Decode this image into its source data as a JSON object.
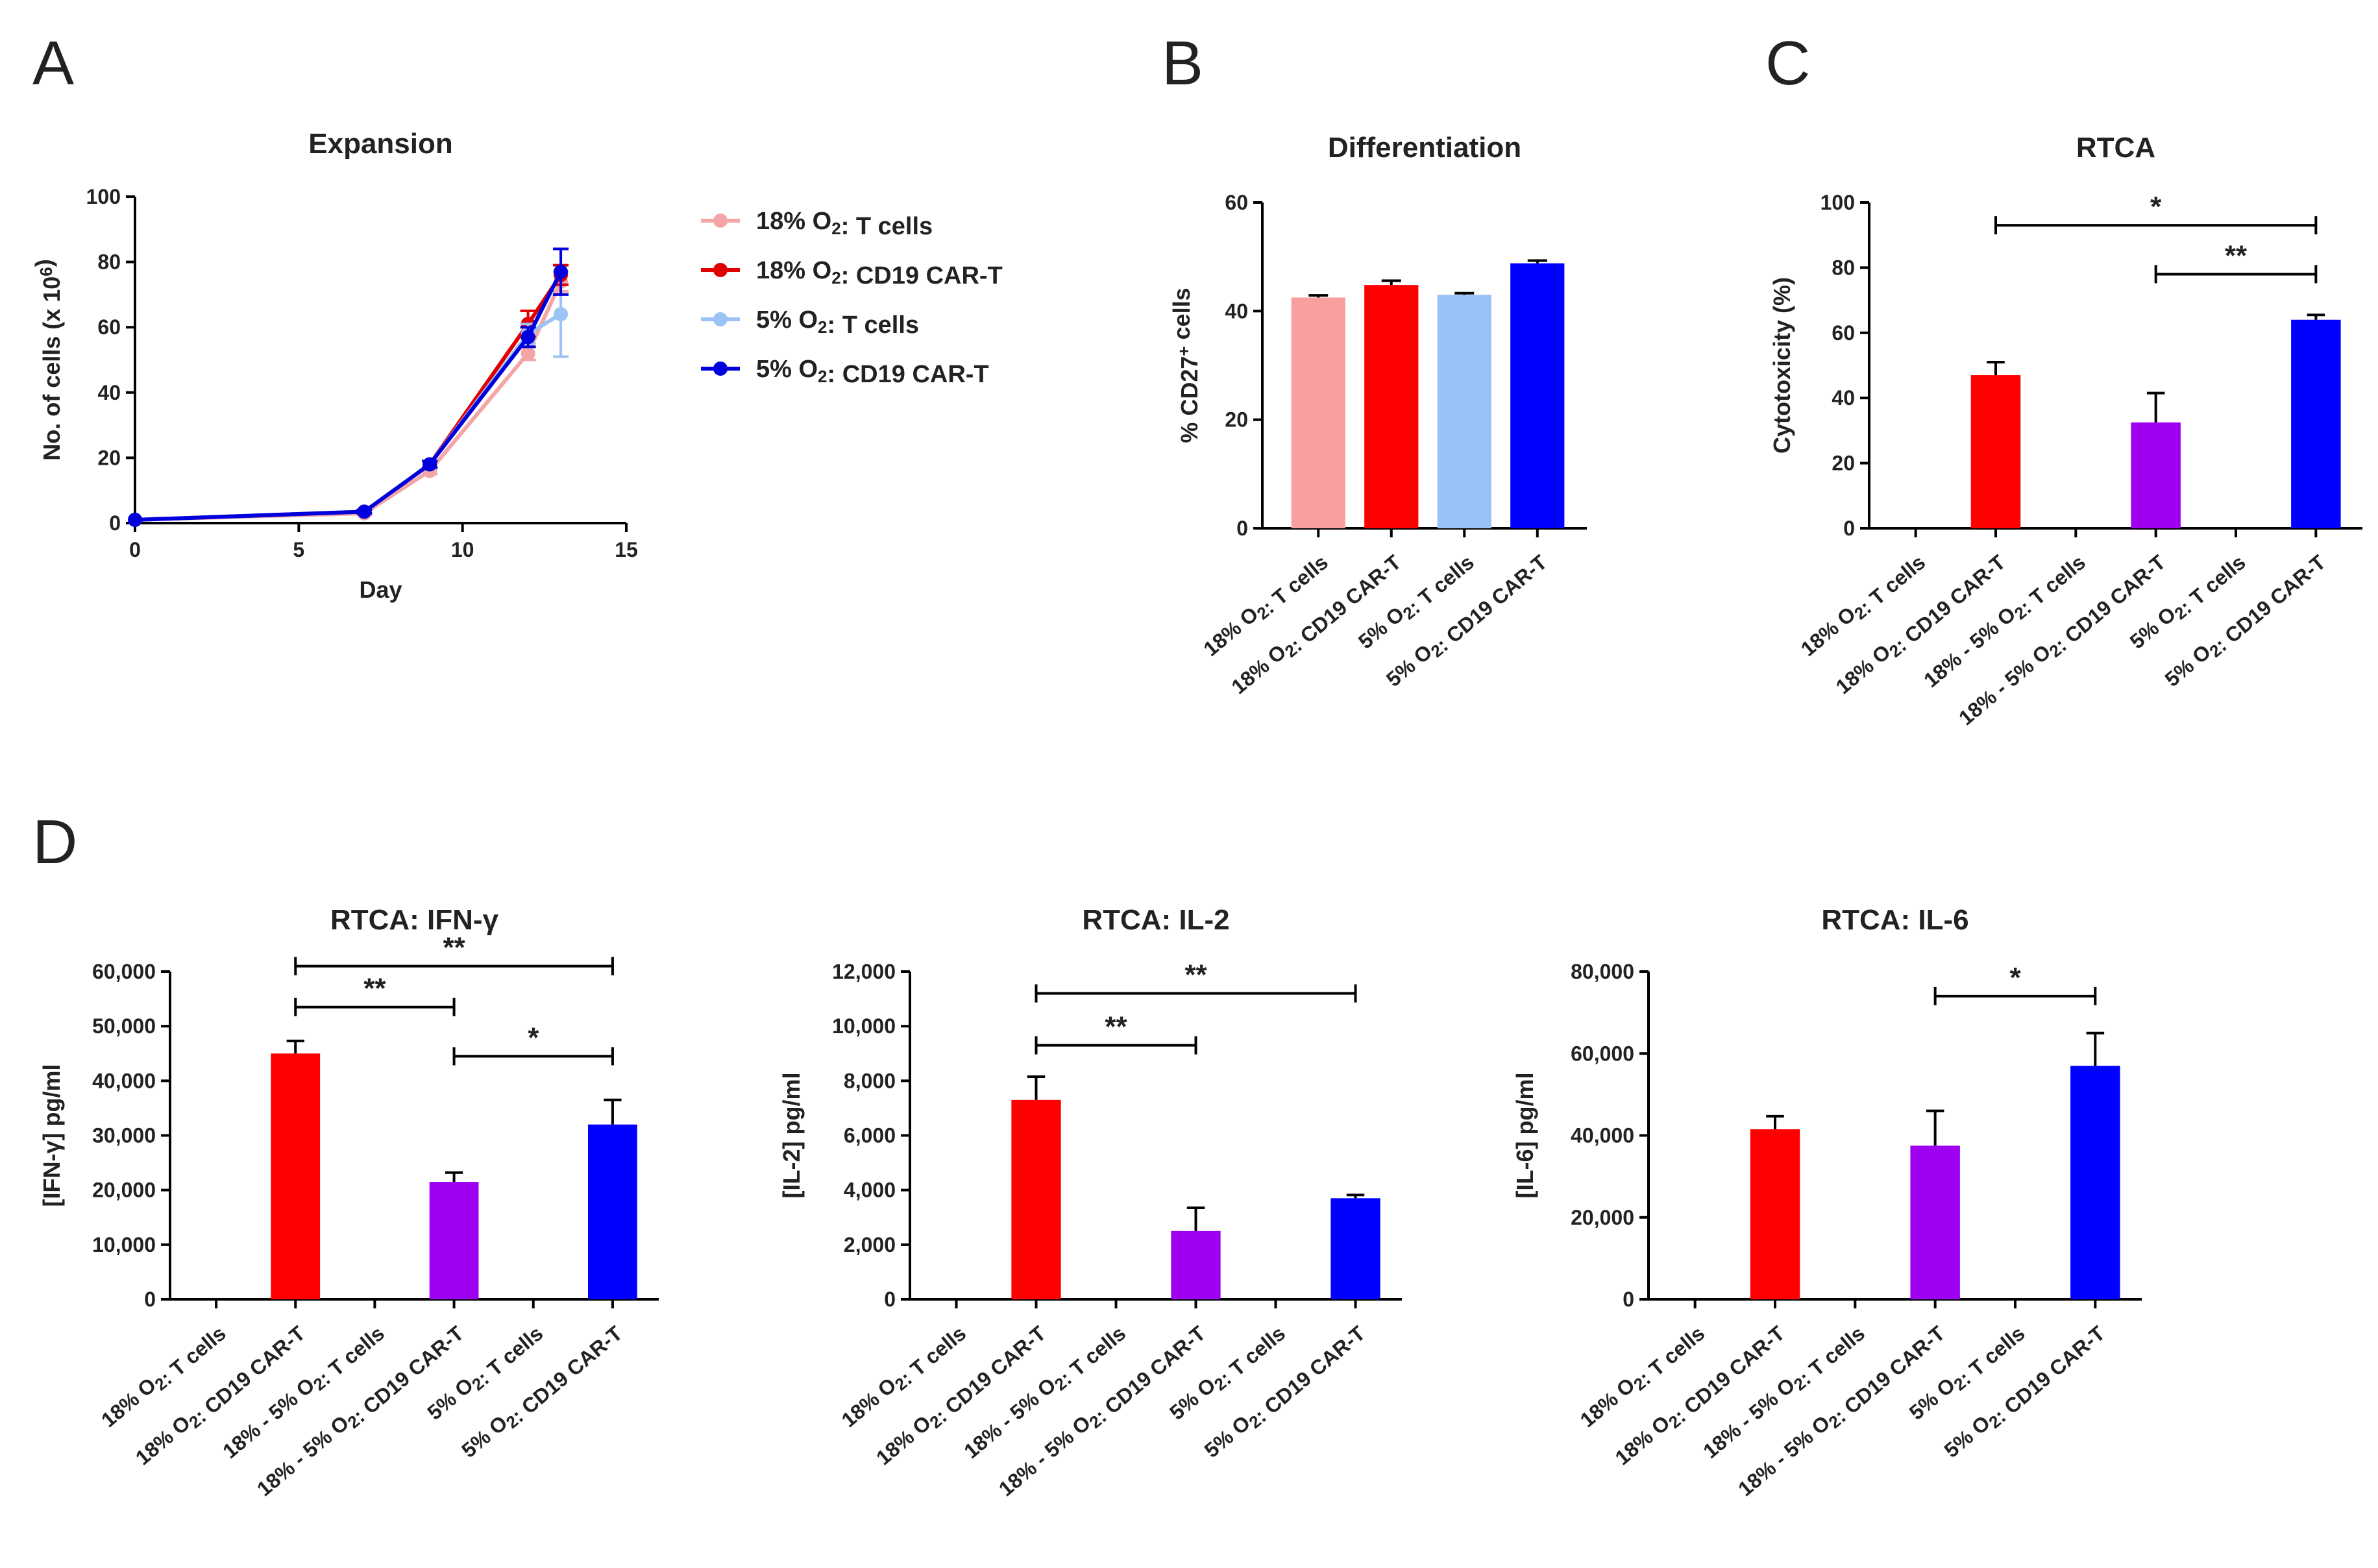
{
  "figure": {
    "panel_labels": [
      "A",
      "B",
      "C",
      "D"
    ]
  },
  "legend": {
    "items": [
      {
        "label": "18% O2: T cells",
        "color": "#f4a6a6"
      },
      {
        "label": "18% O2: CD19 CAR-T",
        "color": "#e00000"
      },
      {
        "label": "5% O2: T cells",
        "color": "#9cc3f5"
      },
      {
        "label": "5% O2: CD19 CAR-T",
        "color": "#0000dd"
      }
    ]
  },
  "chart_data": [
    {
      "id": "A",
      "type": "line",
      "title": "Expansion",
      "xlabel": "Day",
      "ylabel": "No. of cells (x 10^6)",
      "xlim": [
        0,
        15
      ],
      "ylim": [
        0,
        100
      ],
      "xticks": [
        0,
        5,
        10,
        15
      ],
      "yticks": [
        0,
        20,
        40,
        60,
        80,
        100
      ],
      "series": [
        {
          "name": "18% O2: T cells",
          "color": "#f4a6a6",
          "x": [
            0,
            7,
            9,
            12,
            13
          ],
          "y": [
            1,
            3,
            16,
            52,
            74
          ],
          "err": [
            0,
            0.5,
            1,
            2,
            3
          ]
        },
        {
          "name": "18% O2: CD19 CAR-T",
          "color": "#e00000",
          "x": [
            0,
            7,
            9,
            12,
            13
          ],
          "y": [
            1,
            3.5,
            18,
            61,
            76
          ],
          "err": [
            0,
            0.5,
            1,
            4,
            3
          ]
        },
        {
          "name": "5% O2: T cells",
          "color": "#9cc3f5",
          "x": [
            0,
            7,
            9,
            12,
            13
          ],
          "y": [
            1,
            3.5,
            18,
            58,
            64
          ],
          "err": [
            0,
            0.5,
            1,
            3,
            13
          ]
        },
        {
          "name": "5% O2: CD19 CAR-T",
          "color": "#0000dd",
          "x": [
            0,
            7,
            9,
            12,
            13
          ],
          "y": [
            1,
            3.5,
            18,
            57,
            77
          ],
          "err": [
            0,
            0.5,
            1,
            3,
            7
          ]
        }
      ]
    },
    {
      "id": "B",
      "type": "bar",
      "title": "Differentiation",
      "ylabel": "% CD27+ cells",
      "ylim": [
        0,
        60
      ],
      "yticks": [
        0,
        20,
        40,
        60
      ],
      "categories": [
        "18% O2: T cells",
        "18% O2: CD19 CAR-T",
        "5% O2: T cells",
        "5% O2: CD19 CAR-T"
      ],
      "values": [
        42.5,
        44.8,
        43,
        48.8
      ],
      "err": [
        0.4,
        0.8,
        0.3,
        0.5
      ],
      "colors": [
        "#f8a0a0",
        "#ff0000",
        "#99c2f7",
        "#0000ff"
      ]
    },
    {
      "id": "C",
      "type": "bar",
      "title": "RTCA",
      "ylabel": "Cytotoxicity (%)",
      "ylim": [
        0,
        100
      ],
      "yticks": [
        0,
        20,
        40,
        60,
        80,
        100
      ],
      "categories": [
        "18% O2: T cells",
        "18% O2: CD19 CAR-T",
        "18% - 5% O2: T cells",
        "18% - 5% O2: CD19 CAR-T",
        "5% O2: T cells",
        "5% O2: CD19 CAR-T"
      ],
      "values": [
        0,
        47,
        0,
        32.5,
        0,
        64
      ],
      "err": [
        0,
        4,
        0,
        9,
        0,
        1.5
      ],
      "colors": [
        "#f8a0a0",
        "#ff0000",
        "#d8a0f0",
        "#a000f0",
        "#99c2f7",
        "#0000ff"
      ],
      "significance": [
        {
          "from": 1,
          "to": 5,
          "y": 93,
          "label": "*"
        },
        {
          "from": 3,
          "to": 5,
          "y": 78,
          "label": "**"
        }
      ]
    },
    {
      "id": "D1",
      "type": "bar",
      "title": "RTCA: IFN-γ",
      "ylabel": "[IFN-γ] pg/ml",
      "ylim": [
        0,
        60000
      ],
      "yticks": [
        0,
        10000,
        20000,
        30000,
        40000,
        50000,
        60000
      ],
      "ytick_labels": [
        "0",
        "10,000",
        "20,000",
        "30,000",
        "40,000",
        "50,000",
        "60,000"
      ],
      "categories": [
        "18% O2: T cells",
        "18% O2: CD19 CAR-T",
        "18% - 5% O2: T cells",
        "18% - 5% O2: CD19 CAR-T",
        "5% O2: T cells",
        "5% O2: CD19 CAR-T"
      ],
      "values": [
        0,
        45000,
        0,
        21500,
        0,
        32000
      ],
      "err": [
        0,
        2300,
        0,
        1700,
        0,
        4500
      ],
      "colors": [
        "#f8a0a0",
        "#ff0000",
        "#d8a0f0",
        "#a000f0",
        "#99c2f7",
        "#0000ff"
      ],
      "significance": [
        {
          "from": 1,
          "to": 5,
          "y": 61000,
          "label": "**"
        },
        {
          "from": 1,
          "to": 3,
          "y": 53500,
          "label": "**"
        },
        {
          "from": 3,
          "to": 5,
          "y": 44500,
          "label": "*"
        }
      ]
    },
    {
      "id": "D2",
      "type": "bar",
      "title": "RTCA: IL-2",
      "ylabel": "[IL-2] pg/ml",
      "ylim": [
        0,
        12000
      ],
      "yticks": [
        0,
        2000,
        4000,
        6000,
        8000,
        10000,
        12000
      ],
      "ytick_labels": [
        "0",
        "2,000",
        "4,000",
        "6,000",
        "8,000",
        "10,000",
        "12,000"
      ],
      "categories": [
        "18% O2: T cells",
        "18% O2: CD19 CAR-T",
        "18% - 5% O2: T cells",
        "18% - 5% O2: CD19 CAR-T",
        "5% O2: T cells",
        "5% O2: CD19 CAR-T"
      ],
      "values": [
        0,
        7300,
        0,
        2500,
        0,
        3700
      ],
      "err": [
        0,
        850,
        0,
        850,
        0,
        120
      ],
      "colors": [
        "#f8a0a0",
        "#ff0000",
        "#d8a0f0",
        "#a000f0",
        "#99c2f7",
        "#0000ff"
      ],
      "significance": [
        {
          "from": 1,
          "to": 5,
          "y": 11200,
          "label": "**"
        },
        {
          "from": 1,
          "to": 3,
          "y": 9300,
          "label": "**"
        }
      ]
    },
    {
      "id": "D3",
      "type": "bar",
      "title": "RTCA: IL-6",
      "ylabel": "[IL-6] pg/ml",
      "ylim": [
        0,
        80000
      ],
      "yticks": [
        0,
        20000,
        40000,
        60000,
        80000
      ],
      "ytick_labels": [
        "0",
        "20,000",
        "40,000",
        "60,000",
        "80,000"
      ],
      "categories": [
        "18% O2: T cells",
        "18% O2: CD19 CAR-T",
        "18% - 5% O2: T cells",
        "18% - 5% O2: CD19 CAR-T",
        "5% O2: T cells",
        "5% O2: CD19 CAR-T"
      ],
      "values": [
        0,
        41500,
        0,
        37500,
        0,
        57000
      ],
      "err": [
        0,
        3200,
        0,
        8500,
        0,
        8000
      ],
      "colors": [
        "#f8a0a0",
        "#ff0000",
        "#d8a0f0",
        "#a000f0",
        "#99c2f7",
        "#0000ff"
      ],
      "significance": [
        {
          "from": 3,
          "to": 5,
          "y": 74000,
          "label": "*"
        }
      ]
    }
  ]
}
